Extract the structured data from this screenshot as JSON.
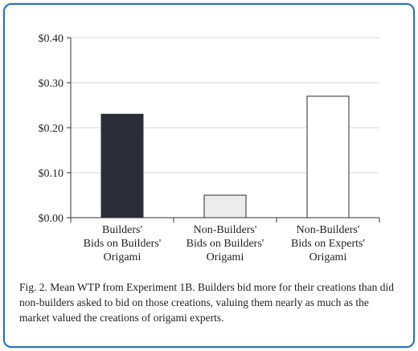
{
  "chart_data": {
    "type": "bar",
    "categories": [
      [
        "Builders'",
        "Bids on Builders'",
        "Origami"
      ],
      [
        "Non-Builders'",
        "Bids on Builders'",
        "Origami"
      ],
      [
        "Non-Builders'",
        "Bids on Experts'",
        "Origami"
      ]
    ],
    "values": [
      0.23,
      0.05,
      0.27
    ],
    "bar_colors": [
      "#2a2d35",
      "#ececec",
      "#ffffff"
    ],
    "ylim": [
      0,
      0.4
    ],
    "yticks": [
      0,
      0.1,
      0.2,
      0.3,
      0.4
    ],
    "ytick_labels": [
      "$0.00",
      "$0.10",
      "$0.20",
      "$0.30",
      "$0.40"
    ],
    "grid": true,
    "title": "",
    "xlabel": "",
    "ylabel": ""
  },
  "caption": "Fig. 2. Mean WTP from Experiment 1B. Builders bid more for their creations than did non-builders asked to bid on those creations, valuing them nearly as much as the market valued the creations of origami experts.",
  "colors": {
    "frame": "#2f6fb0",
    "grid": "#d9d9d9",
    "axis": "#333333"
  }
}
